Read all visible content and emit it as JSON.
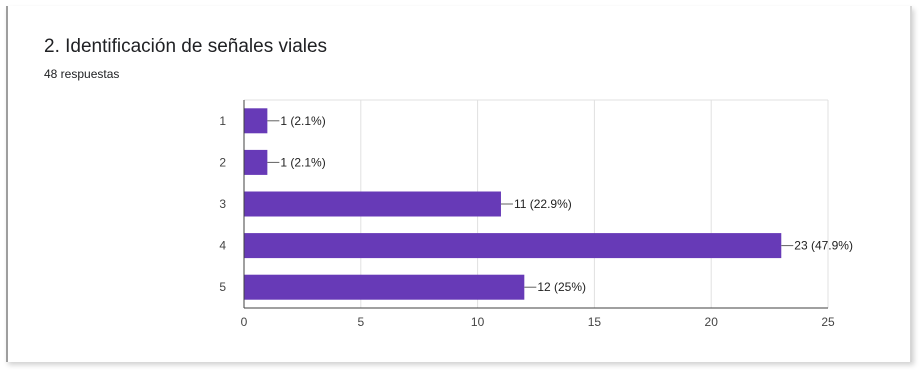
{
  "header": {
    "title": "2. Identificación de señales viales",
    "responses": "48 respuestas"
  },
  "chart_data": {
    "type": "bar",
    "orientation": "horizontal",
    "categories": [
      "1",
      "2",
      "3",
      "4",
      "5"
    ],
    "values": [
      1,
      1,
      11,
      23,
      12
    ],
    "data_labels": [
      "1 (2.1%)",
      "1 (2.1%)",
      "11 (22.9%)",
      "23 (47.9%)",
      "12 (25%)"
    ],
    "x_ticks": [
      0,
      5,
      10,
      15,
      20,
      25
    ],
    "xlim": [
      0,
      25
    ],
    "grid": true,
    "bar_color": "#673ab7",
    "grid_color": "#e0e0e0",
    "axis_color": "#424242"
  }
}
